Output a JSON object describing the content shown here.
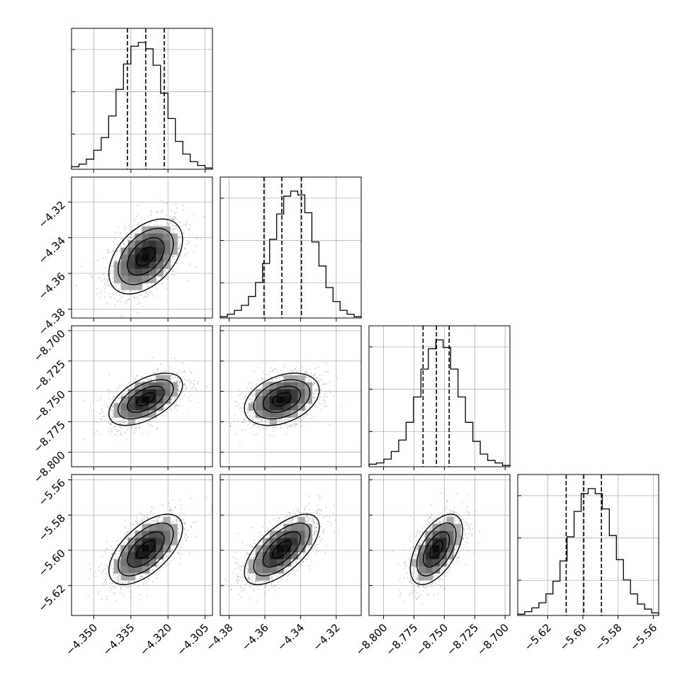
{
  "chart_data": {
    "type": "corner",
    "grid": true,
    "params": [
      {
        "range": [
          -4.359,
          -4.302
        ],
        "median": -4.329,
        "q16": -4.3364,
        "q84": -4.3215,
        "hist": [
          0.02,
          0.04,
          0.08,
          0.15,
          0.25,
          0.42,
          0.63,
          0.83,
          0.97,
          1.0,
          0.95,
          0.82,
          0.6,
          0.4,
          0.22,
          0.12,
          0.06,
          0.03,
          0.01
        ],
        "ticks": [
          -4.35,
          -4.335,
          -4.32,
          -4.305
        ],
        "tick_labels": [
          "−4.350",
          "−4.335",
          "−4.320",
          "−4.305"
        ]
      },
      {
        "range": [
          -4.385,
          -4.306
        ],
        "median": -4.3505,
        "q16": -4.3605,
        "q84": -4.3395,
        "hist": [
          0.01,
          0.03,
          0.06,
          0.1,
          0.17,
          0.28,
          0.43,
          0.62,
          0.82,
          0.96,
          1.0,
          0.97,
          0.83,
          0.6,
          0.41,
          0.24,
          0.13,
          0.06,
          0.03,
          0.01
        ],
        "ticks": [
          -4.38,
          -4.36,
          -4.34,
          -4.32
        ],
        "tick_labels": [
          "−4.38",
          "−4.36",
          "−4.34",
          "−4.32"
        ]
      },
      {
        "range": [
          -8.812,
          -8.696
        ],
        "median": -8.7565,
        "q16": -8.7675,
        "q84": -8.746,
        "hist": [
          0.02,
          0.03,
          0.06,
          0.12,
          0.21,
          0.35,
          0.55,
          0.77,
          0.93,
          1.0,
          0.94,
          0.77,
          0.55,
          0.35,
          0.2,
          0.1,
          0.05,
          0.03,
          0.01
        ],
        "ticks": [
          -8.8,
          -8.775,
          -8.75,
          -8.725,
          -8.7
        ],
        "tick_labels": [
          "−8.800",
          "−8.775",
          "−8.750",
          "−8.725",
          "−8.700"
        ]
      },
      {
        "range": [
          -5.637,
          -5.557
        ],
        "median": -5.5995,
        "q16": -5.6095,
        "q84": -5.5895,
        "hist": [
          0.01,
          0.03,
          0.06,
          0.1,
          0.17,
          0.27,
          0.43,
          0.62,
          0.82,
          0.96,
          1.0,
          0.96,
          0.84,
          0.63,
          0.44,
          0.28,
          0.17,
          0.09,
          0.05,
          0.02
        ],
        "ticks": [
          -5.62,
          -5.6,
          -5.58,
          -5.56
        ],
        "tick_labels": [
          "−5.62",
          "−5.60",
          "−5.58",
          "−5.56"
        ]
      }
    ],
    "correlations": {
      "1-0": 0.45,
      "2-0": 0.55,
      "2-1": 0.35,
      "3-0": 0.6,
      "3-1": 0.65,
      "3-2": 0.55
    },
    "contour_levels": [
      "0.5 sigma",
      "1.0 sigma",
      "1.5 sigma",
      "2.0 sigma"
    ],
    "colors": {
      "line": "#000000",
      "points": "#8a8a8a",
      "grid": "#b0b0b0"
    }
  }
}
